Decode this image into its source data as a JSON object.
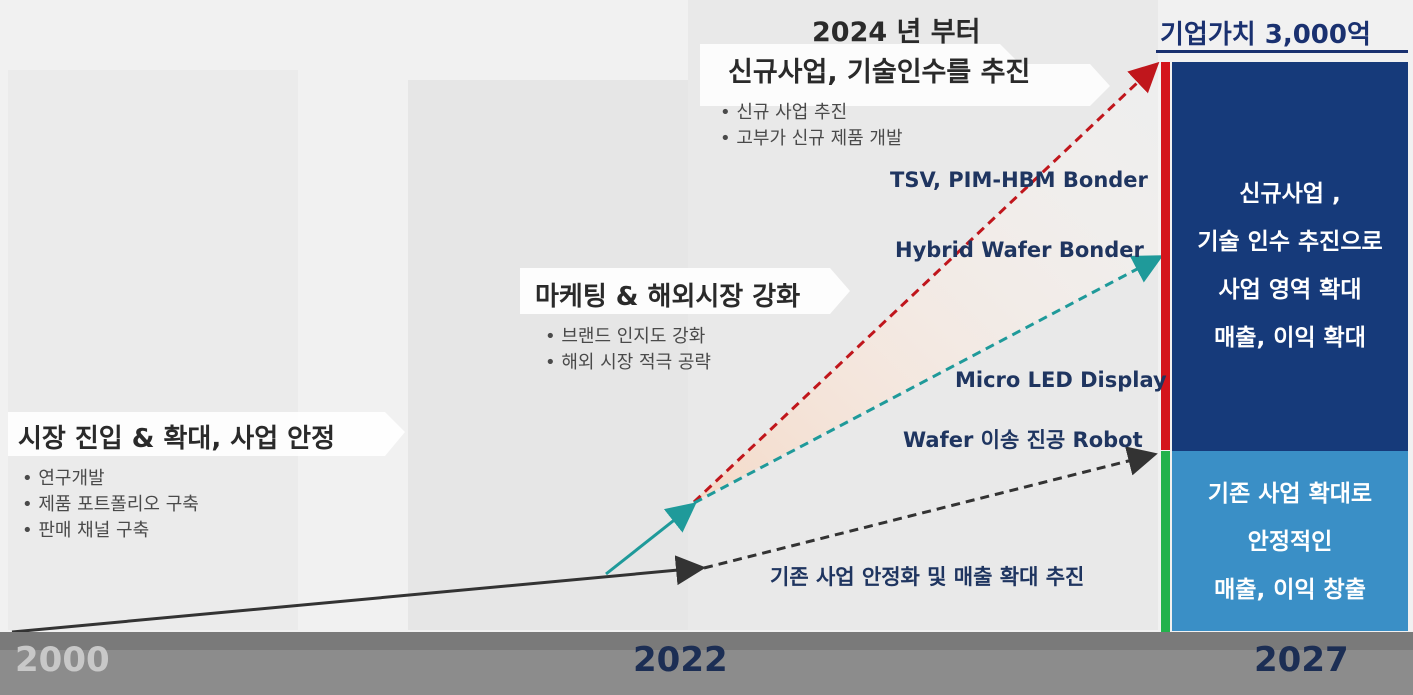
{
  "banner_2024": {
    "line1": "2024 년 부터",
    "line2": "신규사업, 기술인수를  추진",
    "bullets": [
      "신규 사업 추진",
      "고부가 신규 제품 개발"
    ]
  },
  "marketing": {
    "title": "마케팅 & 해외시장 강화",
    "bullets": [
      "브랜드 인지도 강화",
      "해외 시장 적극 공략"
    ]
  },
  "entry": {
    "title": "시장 진입 & 확대, 사업 안정",
    "bullets": [
      "연구개발",
      "제품 포트폴리오 구축",
      "판매 채널 구축"
    ]
  },
  "products": [
    "TSV, PIM-HBM  Bonder",
    "Hybrid Wafer Bonder",
    "Micro LED Display",
    "Wafer 이송 진공 Robot"
  ],
  "base_business": "기존 사업 안정화 및 매출 확대 추진",
  "corporate_value": "기업가치 3,000억",
  "new_business_box": [
    "신규사업 ,",
    "기술 인수 추진으로",
    "사업 영역 확대",
    "매출, 이익 확대"
  ],
  "existing_business_box": [
    "기존 사업 확대로",
    "안정적인",
    "매출, 이익 창출"
  ],
  "years": [
    "2000",
    "2022",
    "2027"
  ],
  "colors": {
    "navy_box": "#163a7a",
    "light_blue_box": "#3a8fc6",
    "red_arrow": "#c0161c",
    "teal_arrow": "#1f9a9a",
    "green_bar": "#22b24c",
    "timeline": "#8c8c8c"
  }
}
